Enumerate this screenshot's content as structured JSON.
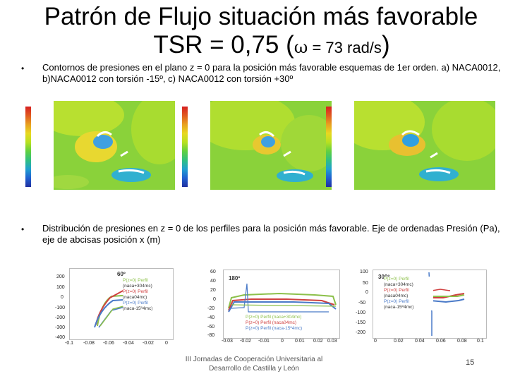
{
  "title": {
    "line1": "Patrón de Flujo situación más favorable",
    "line2_prefix": "TSR = 0,75 (",
    "omega": "ω",
    "line2_value": " = 73 rad/s",
    "line2_suffix": ")"
  },
  "bullets": [
    {
      "mark": "•",
      "text": "Contornos de presiones en el plano z = 0 para la posición más favorable esquemas de 1er orden. a) NACA0012, b)NACA0012 con torsión -15º, c) NACA0012 con torsión +30º"
    },
    {
      "mark": "•",
      "text": "Distribución de presiones en z = 0 de los perfiles para la posición más favorable. Eje de ordenadas Presión (Pa), eje de abcisas posición x (m)"
    }
  ],
  "plots": [
    {
      "label": "60º",
      "yticks": [
        "200",
        "100",
        "0",
        "-100",
        "-200",
        "-300",
        "-400"
      ],
      "xticks": [
        "-0.1",
        "-0.08",
        "-0.06",
        "-0.04",
        "-0.02",
        "0"
      ],
      "legend": [
        "P(z=0) Perfil",
        "(naca+304mc)",
        "P(z=0) Perfil",
        "(naca04mc)",
        "P(z=0) Perfil",
        "(naca-15º4mc)"
      ]
    },
    {
      "label": "180º",
      "yticks": [
        "60",
        "40",
        "20",
        "0",
        "-20",
        "-40",
        "-60",
        "-80"
      ],
      "xticks": [
        "-0.03",
        "-0.02",
        "-0.01",
        "0",
        "0.01",
        "0.02",
        "0.03"
      ],
      "legend": [
        "P(z=0) Perfil (naca+304mc)",
        "P(z=0) Perfil (naca04mc)",
        "P(z=0) Perfil (naca-15º4mc)"
      ]
    },
    {
      "label": "300º",
      "yticks": [
        "100",
        "50",
        "0",
        "-50",
        "-100",
        "-150",
        "-200"
      ],
      "xticks": [
        "0",
        "0.02",
        "0.04",
        "0.06",
        "0.08",
        "0.1"
      ],
      "legend": [
        "P(z=0) Perfil",
        "(naca+304mc)",
        "P(z=0) Perfil",
        "(naca04mc)",
        "P(z=0) Perfil",
        "(naca-15º4mc)"
      ]
    }
  ],
  "colors": {
    "series_a": "#8cc04a",
    "series_b": "#d04040",
    "series_c": "#4a7ac8"
  },
  "footer": {
    "line1": "III Jornadas de Cooperación Universitaria al",
    "line2": "Desarrollo de Castilla y León"
  },
  "page_number": "15"
}
